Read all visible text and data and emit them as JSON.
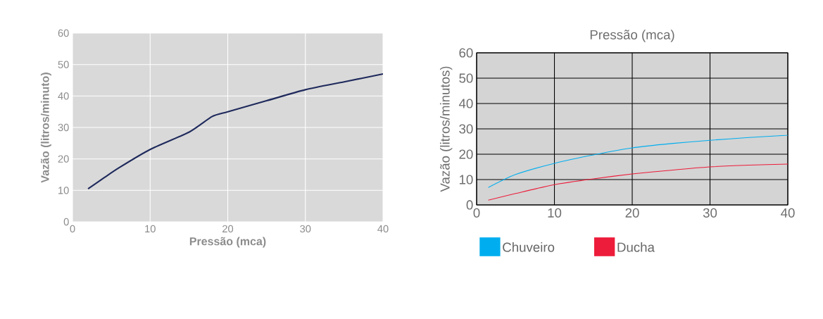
{
  "chart_data": [
    {
      "type": "line",
      "xlabel": "Pressão (mca)",
      "ylabel": "Vazão (litros/minuto)",
      "xlim": [
        0,
        40
      ],
      "ylim": [
        0,
        60
      ],
      "xticks": [
        0,
        10,
        20,
        30,
        40
      ],
      "yticks": [
        0,
        10,
        20,
        30,
        40,
        50,
        60
      ],
      "grid": true,
      "x": [
        2,
        4,
        6,
        10,
        15,
        18,
        20,
        25,
        30,
        35,
        40
      ],
      "series": [
        {
          "color": "#1f2a5c",
          "values": [
            10.5,
            13.9,
            17.2,
            23,
            28.5,
            33.5,
            35,
            38.5,
            42,
            44.5,
            47
          ]
        }
      ]
    },
    {
      "type": "line",
      "xlabel": "Pressão (mca)",
      "ylabel": "Vazão (litros/minutos)",
      "xlim": [
        0,
        40
      ],
      "ylim": [
        0,
        60
      ],
      "xticks": [
        0,
        10,
        20,
        30,
        40
      ],
      "yticks": [
        0,
        10,
        20,
        30,
        40,
        50,
        60
      ],
      "grid": true,
      "legend": "bottom",
      "x": [
        1.5,
        5,
        10,
        15,
        20,
        25,
        30,
        35,
        40
      ],
      "series": [
        {
          "name": "Chuveiro",
          "color": "#00aeef",
          "values": [
            6.9,
            12,
            16.4,
            19.7,
            22.5,
            24.2,
            25.5,
            26.6,
            27.5
          ]
        },
        {
          "name": "Ducha",
          "color": "#ed1c3a",
          "values": [
            1.9,
            4.5,
            8,
            10.3,
            12.2,
            13.7,
            15,
            15.7,
            16.1
          ]
        }
      ]
    }
  ]
}
